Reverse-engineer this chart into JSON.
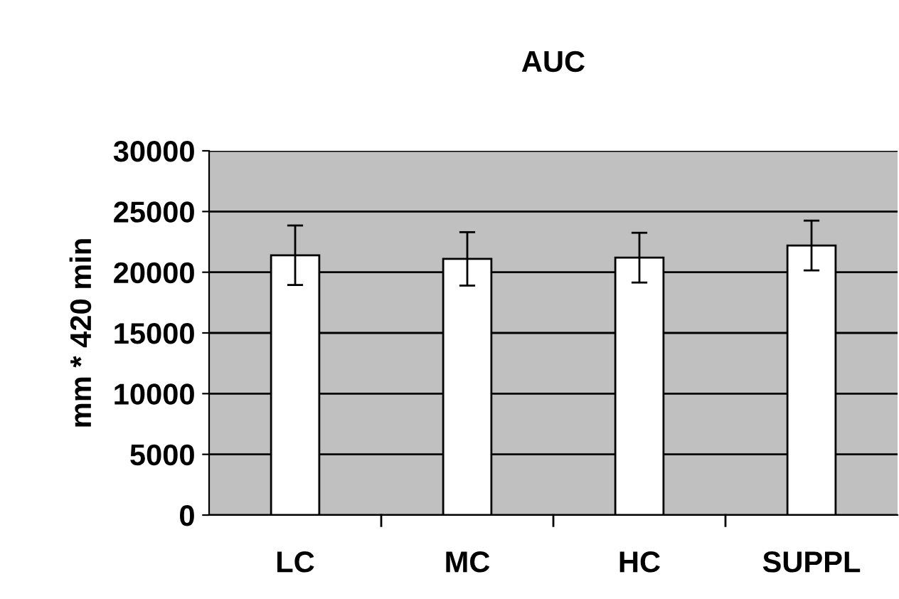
{
  "chart_data": {
    "type": "bar",
    "title": "AUC",
    "ylabel": "mm * 420 min",
    "categories": [
      "LC",
      "MC",
      "HC",
      "SUPPL"
    ],
    "values": [
      21400,
      21100,
      21200,
      22200
    ],
    "errors": [
      2450,
      2200,
      2050,
      2050
    ],
    "color": "#ffffff",
    "ylim": [
      0,
      30000
    ],
    "yticks": [
      0,
      5000,
      10000,
      15000,
      20000,
      25000,
      30000
    ],
    "grid": "y"
  }
}
